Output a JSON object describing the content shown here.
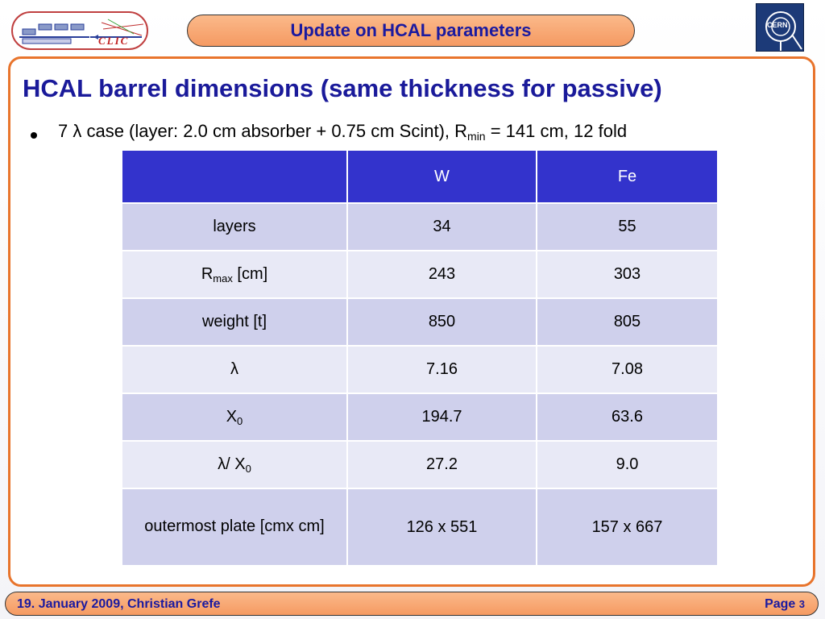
{
  "header": {
    "logo_left_text": "CLIC",
    "title": "Update on HCAL parameters",
    "logo_right_text": "CERN"
  },
  "slide": {
    "heading": "HCAL barrel dimensions (same thickness for passive)",
    "bullet": {
      "prefix": "7 λ case (layer: 2.0 cm absorber + 0.75 cm Scint), R",
      "sub": "min",
      "suffix": " = 141 cm, 12 fold"
    }
  },
  "table": {
    "columns": [
      "",
      "W",
      "Fe"
    ],
    "rows": [
      {
        "label": "layers",
        "label_sub": "",
        "label_suffix": "",
        "w": "34",
        "fe": "55"
      },
      {
        "label": "R",
        "label_sub": "max",
        "label_suffix": " [cm]",
        "w": "243",
        "fe": "303"
      },
      {
        "label": "weight [t]",
        "label_sub": "",
        "label_suffix": "",
        "w": "850",
        "fe": "805"
      },
      {
        "label": "λ",
        "label_sub": "",
        "label_suffix": "",
        "w": "7.16",
        "fe": "7.08"
      },
      {
        "label": "X",
        "label_sub": "0",
        "label_suffix": "",
        "w": "194.7",
        "fe": "63.6"
      },
      {
        "label": "λ/ X",
        "label_sub": "0",
        "label_suffix": "",
        "w": "27.2",
        "fe": "9.0"
      },
      {
        "label": "outermost plate [cmx cm]",
        "label_sub": "",
        "label_suffix": "",
        "w": "126 x 551",
        "fe": "157 x 667"
      }
    ]
  },
  "footer": {
    "left": "19. January 2009, Christian Grefe",
    "page_label": "Page ",
    "page_number": "3"
  },
  "colors": {
    "accent_orange": "#f59a62",
    "title_blue": "#1a1aa0",
    "table_header": "#3333cc",
    "row_dark": "#cfd0ec",
    "row_light": "#e8e9f6"
  }
}
